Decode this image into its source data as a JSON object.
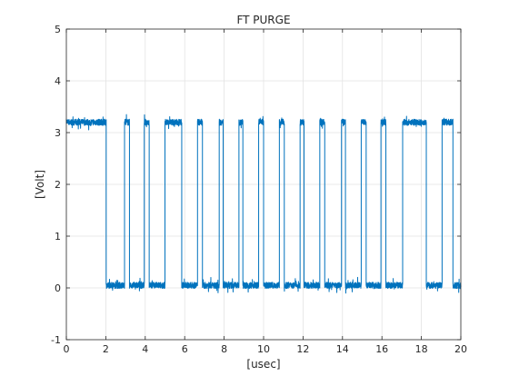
{
  "chart_data": {
    "type": "line",
    "title": "FT PURGE",
    "xlabel": "[usec]",
    "ylabel": "[Volt]",
    "xlim": [
      0,
      20
    ],
    "ylim": [
      -1,
      5
    ],
    "xticks": [
      0,
      2,
      4,
      6,
      8,
      10,
      12,
      14,
      16,
      18,
      20
    ],
    "yticks": [
      -1,
      0,
      1,
      2,
      3,
      4,
      5
    ],
    "grid": true,
    "line_color": "#0072BD",
    "high_level": 3.2,
    "low_level": 0.05,
    "noise_amplitude": 0.12,
    "series": [
      {
        "segments": [
          {
            "x_start": 0.0,
            "x_end": 2.02,
            "level": "high"
          },
          {
            "x_start": 2.02,
            "x_end": 2.95,
            "level": "low"
          },
          {
            "x_start": 2.95,
            "x_end": 3.2,
            "level": "high"
          },
          {
            "x_start": 3.2,
            "x_end": 3.95,
            "level": "low"
          },
          {
            "x_start": 3.95,
            "x_end": 4.2,
            "level": "high"
          },
          {
            "x_start": 4.2,
            "x_end": 5.0,
            "level": "low"
          },
          {
            "x_start": 5.0,
            "x_end": 5.85,
            "level": "high"
          },
          {
            "x_start": 5.85,
            "x_end": 6.65,
            "level": "low"
          },
          {
            "x_start": 6.65,
            "x_end": 6.9,
            "level": "high"
          },
          {
            "x_start": 6.9,
            "x_end": 7.75,
            "level": "low"
          },
          {
            "x_start": 7.75,
            "x_end": 7.95,
            "level": "high"
          },
          {
            "x_start": 7.95,
            "x_end": 8.75,
            "level": "low"
          },
          {
            "x_start": 8.75,
            "x_end": 8.95,
            "level": "high"
          },
          {
            "x_start": 8.95,
            "x_end": 9.75,
            "level": "low"
          },
          {
            "x_start": 9.75,
            "x_end": 10.0,
            "level": "high"
          },
          {
            "x_start": 10.0,
            "x_end": 10.8,
            "level": "low"
          },
          {
            "x_start": 10.8,
            "x_end": 11.05,
            "level": "high"
          },
          {
            "x_start": 11.05,
            "x_end": 11.85,
            "level": "low"
          },
          {
            "x_start": 11.85,
            "x_end": 12.05,
            "level": "high"
          },
          {
            "x_start": 12.05,
            "x_end": 12.85,
            "level": "low"
          },
          {
            "x_start": 12.85,
            "x_end": 13.1,
            "level": "high"
          },
          {
            "x_start": 13.1,
            "x_end": 13.95,
            "level": "low"
          },
          {
            "x_start": 13.95,
            "x_end": 14.15,
            "level": "high"
          },
          {
            "x_start": 14.15,
            "x_end": 14.95,
            "level": "low"
          },
          {
            "x_start": 14.95,
            "x_end": 15.2,
            "level": "high"
          },
          {
            "x_start": 15.2,
            "x_end": 15.95,
            "level": "low"
          },
          {
            "x_start": 15.95,
            "x_end": 16.2,
            "level": "high"
          },
          {
            "x_start": 16.2,
            "x_end": 17.05,
            "level": "low"
          },
          {
            "x_start": 17.05,
            "x_end": 18.25,
            "level": "high"
          },
          {
            "x_start": 18.25,
            "x_end": 19.05,
            "level": "low"
          },
          {
            "x_start": 19.05,
            "x_end": 19.6,
            "level": "high"
          },
          {
            "x_start": 19.6,
            "x_end": 20.0,
            "level": "low"
          }
        ]
      }
    ]
  }
}
